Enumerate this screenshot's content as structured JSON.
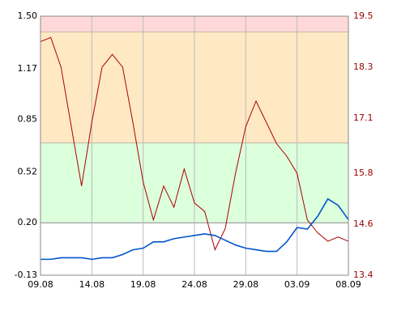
{
  "chart_data": {
    "type": "line",
    "categories": [
      "09.08",
      null,
      null,
      null,
      null,
      "14.08",
      null,
      null,
      null,
      null,
      "19.08",
      null,
      null,
      null,
      null,
      "24.08",
      null,
      null,
      null,
      null,
      "29.08",
      null,
      null,
      null,
      null,
      "03.09",
      null,
      null,
      null,
      null,
      "08.09"
    ],
    "ylim": [
      -0.13,
      1.5
    ],
    "yticks": [
      {
        "value": -0.13,
        "label": "-0.13"
      },
      {
        "value": 0.2,
        "label": "0.20"
      },
      {
        "value": 0.52,
        "label": "0.52"
      },
      {
        "value": 0.85,
        "label": "0.85"
      },
      {
        "value": 1.17,
        "label": "1.17"
      },
      {
        "value": 1.5,
        "label": "1.50"
      }
    ],
    "y2lim": [
      13.4,
      19.5
    ],
    "y2ticks": [
      13.4,
      14.6,
      15.8,
      17.1,
      18.3,
      19.5
    ],
    "y2_color": "#990000",
    "bands": [
      {
        "from": 1.4,
        "to": 1.5,
        "color": "#ffd9d9"
      },
      {
        "from": 0.7,
        "to": 1.4,
        "color": "#ffe9c4"
      },
      {
        "from": 0.2,
        "to": 0.7,
        "color": "#dcffdc"
      }
    ],
    "series": [
      {
        "color": "#aa0000",
        "axis": "y2",
        "values": [
          18.9,
          19.0,
          18.3,
          16.9,
          15.5,
          17.0,
          18.3,
          18.6,
          18.3,
          17.0,
          15.6,
          14.7,
          15.5,
          15.0,
          15.9,
          15.1,
          14.9,
          14.0,
          14.5,
          15.8,
          16.9,
          17.5,
          17.0,
          16.5,
          16.2,
          15.8,
          14.7,
          14.4,
          14.2,
          14.3,
          14.2
        ]
      },
      {
        "color": "#0055cc",
        "values": [
          -0.03,
          -0.03,
          -0.02,
          -0.02,
          -0.02,
          -0.03,
          -0.02,
          -0.02,
          0.0,
          0.03,
          0.04,
          0.08,
          0.08,
          0.1,
          0.11,
          0.12,
          0.13,
          0.12,
          0.09,
          0.06,
          0.04,
          0.03,
          0.02,
          0.02,
          0.08,
          0.17,
          0.16,
          0.24,
          0.35,
          0.31,
          0.22
        ]
      }
    ]
  }
}
